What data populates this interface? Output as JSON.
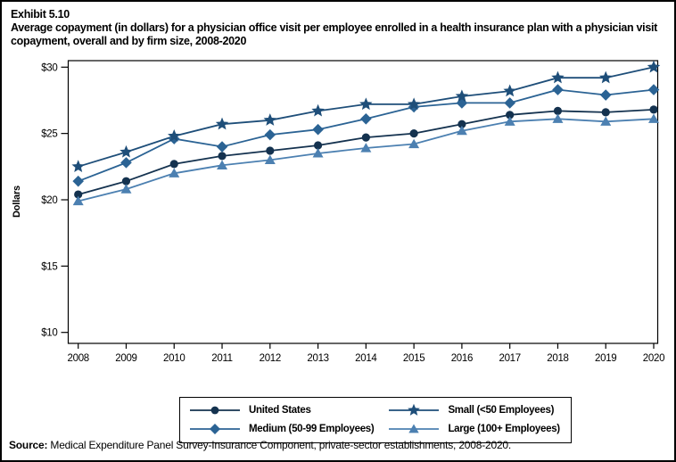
{
  "header": {
    "exhibit": "Exhibit 5.10",
    "title": "Average copayment (in dollars) for a physician office visit per employee enrolled in a health insurance plan with a physician visit copayment, overall and by firm size, 2008-2020"
  },
  "chart_data": {
    "type": "line",
    "x": [
      2008,
      2009,
      2010,
      2011,
      2012,
      2013,
      2014,
      2015,
      2016,
      2017,
      2018,
      2019,
      2020
    ],
    "xlabel": "",
    "ylabel": "Dollars",
    "ylim": [
      10,
      30
    ],
    "yticks": [
      10,
      15,
      20,
      25,
      30
    ],
    "ytick_labels": [
      "$10",
      "$15",
      "$20",
      "$25",
      "$30"
    ],
    "grid": false,
    "legend_position": "bottom",
    "series": [
      {
        "name": "United States",
        "marker": "circle",
        "color": "#14324F",
        "values": [
          20.4,
          21.4,
          22.7,
          23.3,
          23.7,
          24.1,
          24.7,
          25.0,
          25.7,
          26.4,
          26.7,
          26.6,
          26.8
        ]
      },
      {
        "name": "Medium (50-99 Employees)",
        "marker": "diamond",
        "color": "#2B6394",
        "values": [
          21.4,
          22.8,
          24.6,
          24.0,
          24.9,
          25.3,
          26.1,
          27.0,
          27.3,
          27.3,
          28.3,
          27.9,
          28.3
        ]
      },
      {
        "name": "Small (<50 Employees)",
        "marker": "star",
        "color": "#1E4E79",
        "values": [
          22.5,
          23.6,
          24.8,
          25.7,
          26.0,
          26.7,
          27.2,
          27.2,
          27.8,
          28.2,
          29.2,
          29.2,
          30.0
        ]
      },
      {
        "name": "Large (100+ Employees)",
        "marker": "triangle",
        "color": "#4C80B1",
        "values": [
          19.9,
          20.8,
          22.0,
          22.6,
          23.0,
          23.5,
          23.9,
          24.2,
          25.2,
          25.9,
          26.1,
          25.9,
          26.1
        ]
      }
    ]
  },
  "legend": {
    "columns": [
      [
        0,
        1
      ],
      [
        2,
        3
      ]
    ]
  },
  "source": {
    "label": "Source:",
    "text": " Medical Expenditure Panel Survey-Insurance Component, private-sector establishments, 2008-2020."
  }
}
